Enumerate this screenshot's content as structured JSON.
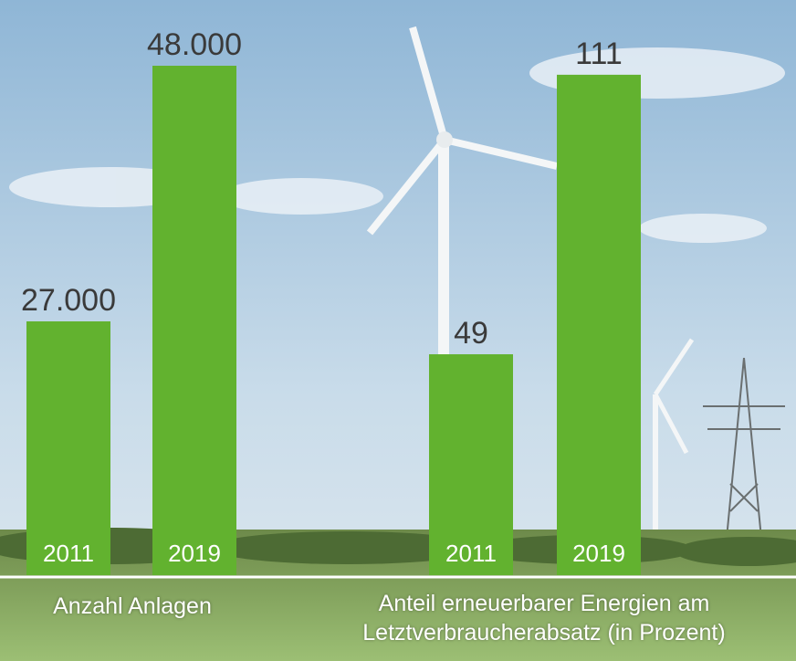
{
  "chart_data": [
    {
      "type": "bar",
      "categories": [
        "2011",
        "2019"
      ],
      "values": [
        27000,
        48000
      ],
      "value_labels": [
        "27.000",
        "48.000"
      ],
      "color": "#62b22f",
      "ylim": [
        6150,
        48000
      ],
      "xlabel": "Anzahl Anlagen"
    },
    {
      "type": "bar",
      "categories": [
        "2011",
        "2019"
      ],
      "values": [
        49,
        111
      ],
      "value_labels": [
        "49",
        "111"
      ],
      "color": "#62b22f",
      "ylim": [
        0,
        113
      ],
      "xlabel": "Anteil erneuerbarer Energien am Letztverbraucherabsatz (in Prozent)"
    }
  ]
}
